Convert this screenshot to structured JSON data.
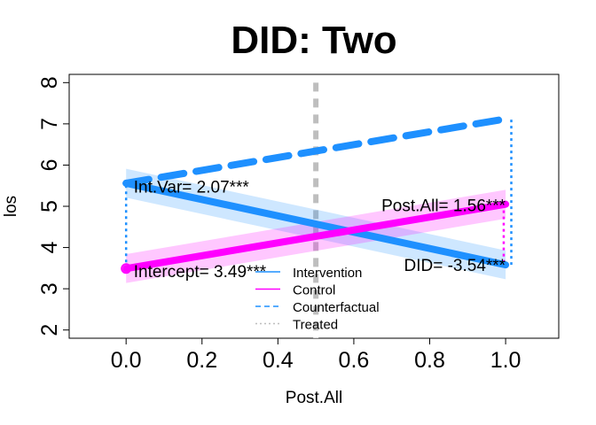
{
  "chart_data": {
    "type": "line",
    "title": "DID: Two",
    "xlabel": "Post.All",
    "ylabel": "los",
    "xlim": [
      -0.15,
      1.14
    ],
    "ylim": [
      1.8,
      8.2
    ],
    "x_ticks": [
      "0.0",
      "0.2",
      "0.4",
      "0.6",
      "0.8",
      "1.0"
    ],
    "y_ticks": [
      "2",
      "3",
      "4",
      "5",
      "6",
      "7",
      "8"
    ],
    "grid": false,
    "series": [
      {
        "name": "Intervention",
        "x": [
          0,
          1
        ],
        "y": [
          5.56,
          3.58
        ],
        "color": "#1E90FF",
        "band": 0.35
      },
      {
        "name": "Control",
        "x": [
          0,
          1
        ],
        "y": [
          3.49,
          5.05
        ],
        "color": "#FF00FF",
        "band": 0.35
      },
      {
        "name": "Counterfactual",
        "x": [
          0,
          1
        ],
        "y": [
          5.56,
          7.12
        ],
        "color": "#1E90FF",
        "dashed": true
      }
    ],
    "treated_line_x": 0.5,
    "annotations": [
      {
        "text": "Int.Var= 2.07***",
        "x": 0.02,
        "y": 5.5
      },
      {
        "text": "Intercept= 3.49***",
        "x": 0.02,
        "y": 3.45
      },
      {
        "text": "Post.All= 1.56***",
        "x": 1.0,
        "y": 5.05
      },
      {
        "text": "DID= -3.54***",
        "x": 1.0,
        "y": 3.6
      }
    ],
    "legend": {
      "position": "bottom-center",
      "items": [
        {
          "label": "Intervention",
          "color": "#1E90FF",
          "style": "solid"
        },
        {
          "label": "Control",
          "color": "#FF00FF",
          "style": "solid"
        },
        {
          "label": "Counterfactual",
          "color": "#1E90FF",
          "style": "dashed"
        },
        {
          "label": "Treated",
          "color": "#BEBEBE",
          "style": "dotted"
        }
      ]
    }
  }
}
